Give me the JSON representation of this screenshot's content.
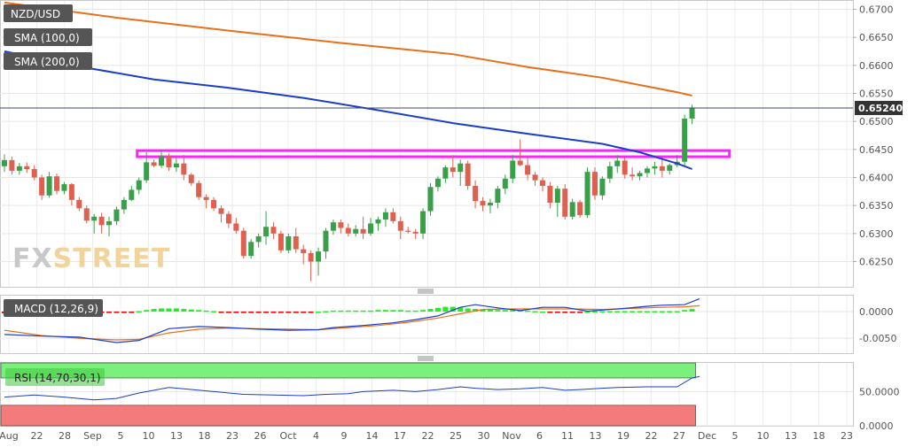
{
  "symbol": "NZD/USD",
  "indicators": {
    "sma100": "SMA (100,0)",
    "sma200": "SMA (200,0)",
    "macd": "MACD (12,26,9)",
    "rsi": "RSI (14,70,30,1)"
  },
  "current_price": "0.65240",
  "watermark": {
    "part1": "FX",
    "part2": "STREET"
  },
  "colors": {
    "bull": "#38a048",
    "bear": "#e06050",
    "sma100": "#1b3dc8",
    "sma200": "#e8701a",
    "zone": "#ff22ff",
    "macd_line": "#1b3dc8",
    "signal_line": "#e8701a",
    "hist_pos": "#22ee22",
    "hist_neg": "#dd0000",
    "rsi_line": "#1b3dc8",
    "rsi_upper": "#7cf07c",
    "rsi_lower": "#f47b7b",
    "legend_bg": "#555555",
    "price_tag": "#333333",
    "watermark_part1": "#c8c8c8",
    "watermark_part2": "#f2d49a"
  },
  "chart_data": [
    {
      "type": "candlestick",
      "title": "NZD/USD",
      "x_tick_labels": [
        "Aug",
        "22",
        "28",
        "Sep",
        "5",
        "10",
        "13",
        "18",
        "23",
        "26",
        "Oct",
        "4",
        "9",
        "14",
        "17",
        "22",
        "25",
        "30",
        "Nov",
        "6",
        "11",
        "13",
        "19",
        "22",
        "27",
        "Dec",
        "5",
        "10",
        "13",
        "18",
        "23"
      ],
      "y_ticks": [
        "0.6700",
        "0.6650",
        "0.6600",
        "0.6550",
        "0.6500",
        "0.6450",
        "0.6400",
        "0.6350",
        "0.6300",
        "0.6250"
      ],
      "ylim": [
        0.6205,
        0.6715
      ],
      "current_price": 0.6524,
      "resistance_zone": [
        0.6437,
        0.6448
      ],
      "candles": [
        [
          0.642,
          0.6441,
          0.641,
          0.6431
        ],
        [
          0.6431,
          0.6437,
          0.6405,
          0.6412
        ],
        [
          0.6412,
          0.6426,
          0.6405,
          0.642
        ],
        [
          0.642,
          0.6427,
          0.6408,
          0.6415
        ],
        [
          0.6415,
          0.6422,
          0.6395,
          0.64
        ],
        [
          0.64,
          0.6405,
          0.636,
          0.6368
        ],
        [
          0.6368,
          0.641,
          0.6364,
          0.6402
        ],
        [
          0.6402,
          0.6407,
          0.637,
          0.6376
        ],
        [
          0.6376,
          0.6392,
          0.637,
          0.6388
        ],
        [
          0.6388,
          0.639,
          0.635,
          0.636
        ],
        [
          0.636,
          0.6365,
          0.634,
          0.6345
        ],
        [
          0.6345,
          0.635,
          0.6318,
          0.6323
        ],
        [
          0.6323,
          0.6335,
          0.63,
          0.633
        ],
        [
          0.633,
          0.6337,
          0.63,
          0.6315
        ],
        [
          0.6315,
          0.633,
          0.6295,
          0.6322
        ],
        [
          0.6322,
          0.6348,
          0.6315,
          0.6343
        ],
        [
          0.6343,
          0.6365,
          0.6335,
          0.636
        ],
        [
          0.636,
          0.6385,
          0.6358,
          0.6378
        ],
        [
          0.6378,
          0.64,
          0.637,
          0.6395
        ],
        [
          0.6395,
          0.6445,
          0.639,
          0.6427
        ],
        [
          0.6427,
          0.6432,
          0.6418,
          0.6421
        ],
        [
          0.6421,
          0.645,
          0.6417,
          0.6438
        ],
        [
          0.6438,
          0.6443,
          0.6412,
          0.6418
        ],
        [
          0.6418,
          0.6435,
          0.641,
          0.6425
        ],
        [
          0.6425,
          0.644,
          0.6395,
          0.6405
        ],
        [
          0.6405,
          0.6408,
          0.6385,
          0.639
        ],
        [
          0.639,
          0.6395,
          0.636,
          0.6365
        ],
        [
          0.6365,
          0.637,
          0.6345,
          0.636
        ],
        [
          0.636,
          0.6365,
          0.634,
          0.6345
        ],
        [
          0.6345,
          0.635,
          0.632,
          0.6335
        ],
        [
          0.6335,
          0.634,
          0.631,
          0.6318
        ],
        [
          0.6318,
          0.6328,
          0.63,
          0.6305
        ],
        [
          0.6305,
          0.631,
          0.6255,
          0.626
        ],
        [
          0.626,
          0.629,
          0.6255,
          0.6285
        ],
        [
          0.6285,
          0.63,
          0.6275,
          0.6295
        ],
        [
          0.6295,
          0.634,
          0.628,
          0.6312
        ],
        [
          0.6312,
          0.632,
          0.629,
          0.63
        ],
        [
          0.63,
          0.6305,
          0.6265,
          0.627
        ],
        [
          0.627,
          0.63,
          0.6265,
          0.6295
        ],
        [
          0.6295,
          0.631,
          0.6265,
          0.6272
        ],
        [
          0.6272,
          0.628,
          0.6245,
          0.6265
        ],
        [
          0.6265,
          0.627,
          0.6215,
          0.625
        ],
        [
          0.625,
          0.6275,
          0.6225,
          0.6268
        ],
        [
          0.6268,
          0.631,
          0.6255,
          0.6305
        ],
        [
          0.6305,
          0.6325,
          0.6298,
          0.632
        ],
        [
          0.632,
          0.6325,
          0.63,
          0.631
        ],
        [
          0.631,
          0.6318,
          0.6295,
          0.63
        ],
        [
          0.63,
          0.6315,
          0.6295,
          0.6308
        ],
        [
          0.6308,
          0.633,
          0.629,
          0.63
        ],
        [
          0.63,
          0.6328,
          0.6296,
          0.6318
        ],
        [
          0.6318,
          0.633,
          0.6305,
          0.6325
        ],
        [
          0.6325,
          0.6345,
          0.6312,
          0.6338
        ],
        [
          0.6338,
          0.6345,
          0.6318,
          0.6322
        ],
        [
          0.6322,
          0.633,
          0.629,
          0.6305
        ],
        [
          0.6305,
          0.6312,
          0.63,
          0.6303
        ],
        [
          0.6303,
          0.6308,
          0.629,
          0.63
        ],
        [
          0.63,
          0.6345,
          0.629,
          0.634
        ],
        [
          0.634,
          0.639,
          0.6332,
          0.6383
        ],
        [
          0.6383,
          0.6402,
          0.6375,
          0.6398
        ],
        [
          0.6398,
          0.6422,
          0.639,
          0.6418
        ],
        [
          0.6418,
          0.644,
          0.64,
          0.641
        ],
        [
          0.641,
          0.6432,
          0.6385,
          0.6425
        ],
        [
          0.6425,
          0.643,
          0.6378,
          0.6385
        ],
        [
          0.6385,
          0.6395,
          0.6345,
          0.6358
        ],
        [
          0.6358,
          0.6365,
          0.634,
          0.635
        ],
        [
          0.635,
          0.6362,
          0.6336,
          0.6355
        ],
        [
          0.6355,
          0.6385,
          0.6345,
          0.638
        ],
        [
          0.638,
          0.6405,
          0.637,
          0.6398
        ],
        [
          0.6398,
          0.644,
          0.639,
          0.643
        ],
        [
          0.643,
          0.6468,
          0.642,
          0.6422
        ],
        [
          0.6422,
          0.6438,
          0.6395,
          0.6405
        ],
        [
          0.6405,
          0.641,
          0.6385,
          0.6395
        ],
        [
          0.6395,
          0.64,
          0.6375,
          0.6385
        ],
        [
          0.6385,
          0.6392,
          0.6345,
          0.6355
        ],
        [
          0.6355,
          0.6385,
          0.633,
          0.638
        ],
        [
          0.638,
          0.6388,
          0.6325,
          0.633
        ],
        [
          0.633,
          0.6362,
          0.6325,
          0.6356
        ],
        [
          0.6356,
          0.636,
          0.6328,
          0.6333
        ],
        [
          0.6333,
          0.6418,
          0.6328,
          0.641
        ],
        [
          0.641,
          0.6418,
          0.636,
          0.6368
        ],
        [
          0.6368,
          0.6402,
          0.636,
          0.6398
        ],
        [
          0.6398,
          0.6428,
          0.639,
          0.642
        ],
        [
          0.642,
          0.644,
          0.6408,
          0.643
        ],
        [
          0.643,
          0.6435,
          0.6398,
          0.6405
        ],
        [
          0.6405,
          0.6418,
          0.6395,
          0.6402
        ],
        [
          0.6402,
          0.6412,
          0.6395,
          0.6408
        ],
        [
          0.6408,
          0.642,
          0.64,
          0.6416
        ],
        [
          0.6416,
          0.6428,
          0.6405,
          0.642
        ],
        [
          0.642,
          0.6432,
          0.64,
          0.6412
        ],
        [
          0.6412,
          0.6425,
          0.6405,
          0.6422
        ],
        [
          0.6422,
          0.644,
          0.6418,
          0.6428
        ],
        [
          0.6428,
          0.6512,
          0.642,
          0.6505
        ],
        [
          0.6505,
          0.653,
          0.6495,
          0.6524
        ]
      ],
      "sma100": [
        [
          0,
          0.6625
        ],
        [
          10,
          0.6598
        ],
        [
          20,
          0.6575
        ],
        [
          30,
          0.656
        ],
        [
          40,
          0.6542
        ],
        [
          50,
          0.652
        ],
        [
          60,
          0.6497
        ],
        [
          70,
          0.6478
        ],
        [
          80,
          0.646
        ],
        [
          85,
          0.6445
        ],
        [
          90,
          0.6425
        ],
        [
          92,
          0.6415
        ]
      ],
      "sma200": [
        [
          0,
          0.6712
        ],
        [
          15,
          0.6685
        ],
        [
          30,
          0.6662
        ],
        [
          45,
          0.664
        ],
        [
          60,
          0.662
        ],
        [
          70,
          0.6597
        ],
        [
          80,
          0.6578
        ],
        [
          85,
          0.6565
        ],
        [
          90,
          0.6552
        ],
        [
          92,
          0.6546
        ]
      ]
    },
    {
      "type": "line",
      "title": "MACD (12,26,9)",
      "y_ticks": [
        "0.0000",
        "-0.0050"
      ],
      "ylim": [
        -0.0078,
        0.003
      ],
      "macd": [
        [
          0,
          -0.0043
        ],
        [
          5,
          -0.0046
        ],
        [
          10,
          -0.0048
        ],
        [
          15,
          -0.0058
        ],
        [
          18,
          -0.0054
        ],
        [
          22,
          -0.0032
        ],
        [
          26,
          -0.0028
        ],
        [
          30,
          -0.003
        ],
        [
          34,
          -0.0033
        ],
        [
          38,
          -0.0035
        ],
        [
          42,
          -0.0034
        ],
        [
          44,
          -0.003
        ],
        [
          48,
          -0.0026
        ],
        [
          52,
          -0.0021
        ],
        [
          55,
          -0.0015
        ],
        [
          58,
          -0.0008
        ],
        [
          61,
          0.0008
        ],
        [
          63,
          0.0013
        ],
        [
          66,
          0.0007
        ],
        [
          69,
          0.0002
        ],
        [
          72,
          0.0008
        ],
        [
          75,
          0.0008
        ],
        [
          78,
          0.0001
        ],
        [
          80,
          0.0003
        ],
        [
          83,
          0.0006
        ],
        [
          86,
          0.001
        ],
        [
          88,
          0.0012
        ],
        [
          91,
          0.0013
        ],
        [
          93,
          0.0024
        ]
      ],
      "signal": [
        [
          0,
          -0.0035
        ],
        [
          5,
          -0.0045
        ],
        [
          10,
          -0.005
        ],
        [
          15,
          -0.0053
        ],
        [
          18,
          -0.0052
        ],
        [
          22,
          -0.004
        ],
        [
          26,
          -0.0033
        ],
        [
          30,
          -0.0031
        ],
        [
          34,
          -0.0032
        ],
        [
          38,
          -0.0033
        ],
        [
          42,
          -0.0034
        ],
        [
          46,
          -0.003
        ],
        [
          50,
          -0.0026
        ],
        [
          54,
          -0.002
        ],
        [
          58,
          -0.0012
        ],
        [
          61,
          -0.0004
        ],
        [
          64,
          0.0004
        ],
        [
          68,
          0.0005
        ],
        [
          72,
          0.0005
        ],
        [
          76,
          0.0005
        ],
        [
          80,
          0.0004
        ],
        [
          84,
          0.0006
        ],
        [
          88,
          0.0008
        ],
        [
          91,
          0.0009
        ],
        [
          93,
          0.0011
        ]
      ],
      "histogram": [
        -0.0003,
        -0.0004,
        -0.0003,
        -0.0002,
        -0.0002,
        -0.0002,
        -0.0003,
        -0.0003,
        -0.0004,
        -0.0004,
        -0.0004,
        -0.0003,
        -0.0003,
        -0.0002,
        -0.0001,
        -0.0001,
        -0.0001,
        -0.0001,
        0.0001,
        0.0003,
        0.0005,
        0.0006,
        0.0006,
        0.0006,
        0.0005,
        0.0004,
        0.0003,
        0.0002,
        0.0001,
        -0.0001,
        -0.0002,
        -0.0002,
        -0.0002,
        -0.0002,
        -0.0002,
        -0.0001,
        -0.0001,
        -0.0001,
        -0.0001,
        -0.0001,
        -0.0001,
        -0.0001,
        0.0,
        0.0001,
        0.0002,
        0.0002,
        0.0002,
        0.0002,
        0.0002,
        0.0002,
        0.0003,
        0.0003,
        0.0003,
        0.0003,
        0.0002,
        0.0002,
        0.0003,
        0.0005,
        0.0007,
        0.0009,
        0.0009,
        0.0008,
        0.0006,
        0.0005,
        0.0004,
        0.0004,
        0.0003,
        0.0003,
        0.0003,
        0.0003,
        0.0002,
        0.0001,
        0.0,
        -0.0001,
        -0.0002,
        -0.0002,
        -0.0002,
        -0.0001,
        0.0,
        0.0001,
        0.0001,
        0.0001,
        0.0001,
        0.0001,
        0.0001,
        0.0001,
        0.0001,
        0.0001,
        0.0001,
        0.0001,
        0.0001,
        0.0003,
        0.0005
      ]
    },
    {
      "type": "line",
      "title": "RSI (14,70,30,1)",
      "y_ticks": [
        "50.0000",
        "0.0000"
      ],
      "ylim": [
        0,
        92
      ],
      "overbought": 70,
      "oversold": 30,
      "rsi": [
        [
          0,
          42
        ],
        [
          4,
          45
        ],
        [
          8,
          42
        ],
        [
          12,
          38
        ],
        [
          15,
          40
        ],
        [
          18,
          48
        ],
        [
          22,
          56
        ],
        [
          24,
          54
        ],
        [
          28,
          50
        ],
        [
          32,
          46
        ],
        [
          36,
          45
        ],
        [
          40,
          44
        ],
        [
          43,
          46
        ],
        [
          46,
          47
        ],
        [
          48,
          50
        ],
        [
          52,
          52
        ],
        [
          55,
          50
        ],
        [
          58,
          53
        ],
        [
          61,
          57
        ],
        [
          63,
          55
        ],
        [
          66,
          53
        ],
        [
          69,
          54
        ],
        [
          72,
          56
        ],
        [
          75,
          52
        ],
        [
          77,
          53
        ],
        [
          80,
          55
        ],
        [
          82,
          56
        ],
        [
          86,
          57
        ],
        [
          90,
          57
        ],
        [
          92,
          70
        ],
        [
          93,
          72
        ]
      ]
    }
  ]
}
